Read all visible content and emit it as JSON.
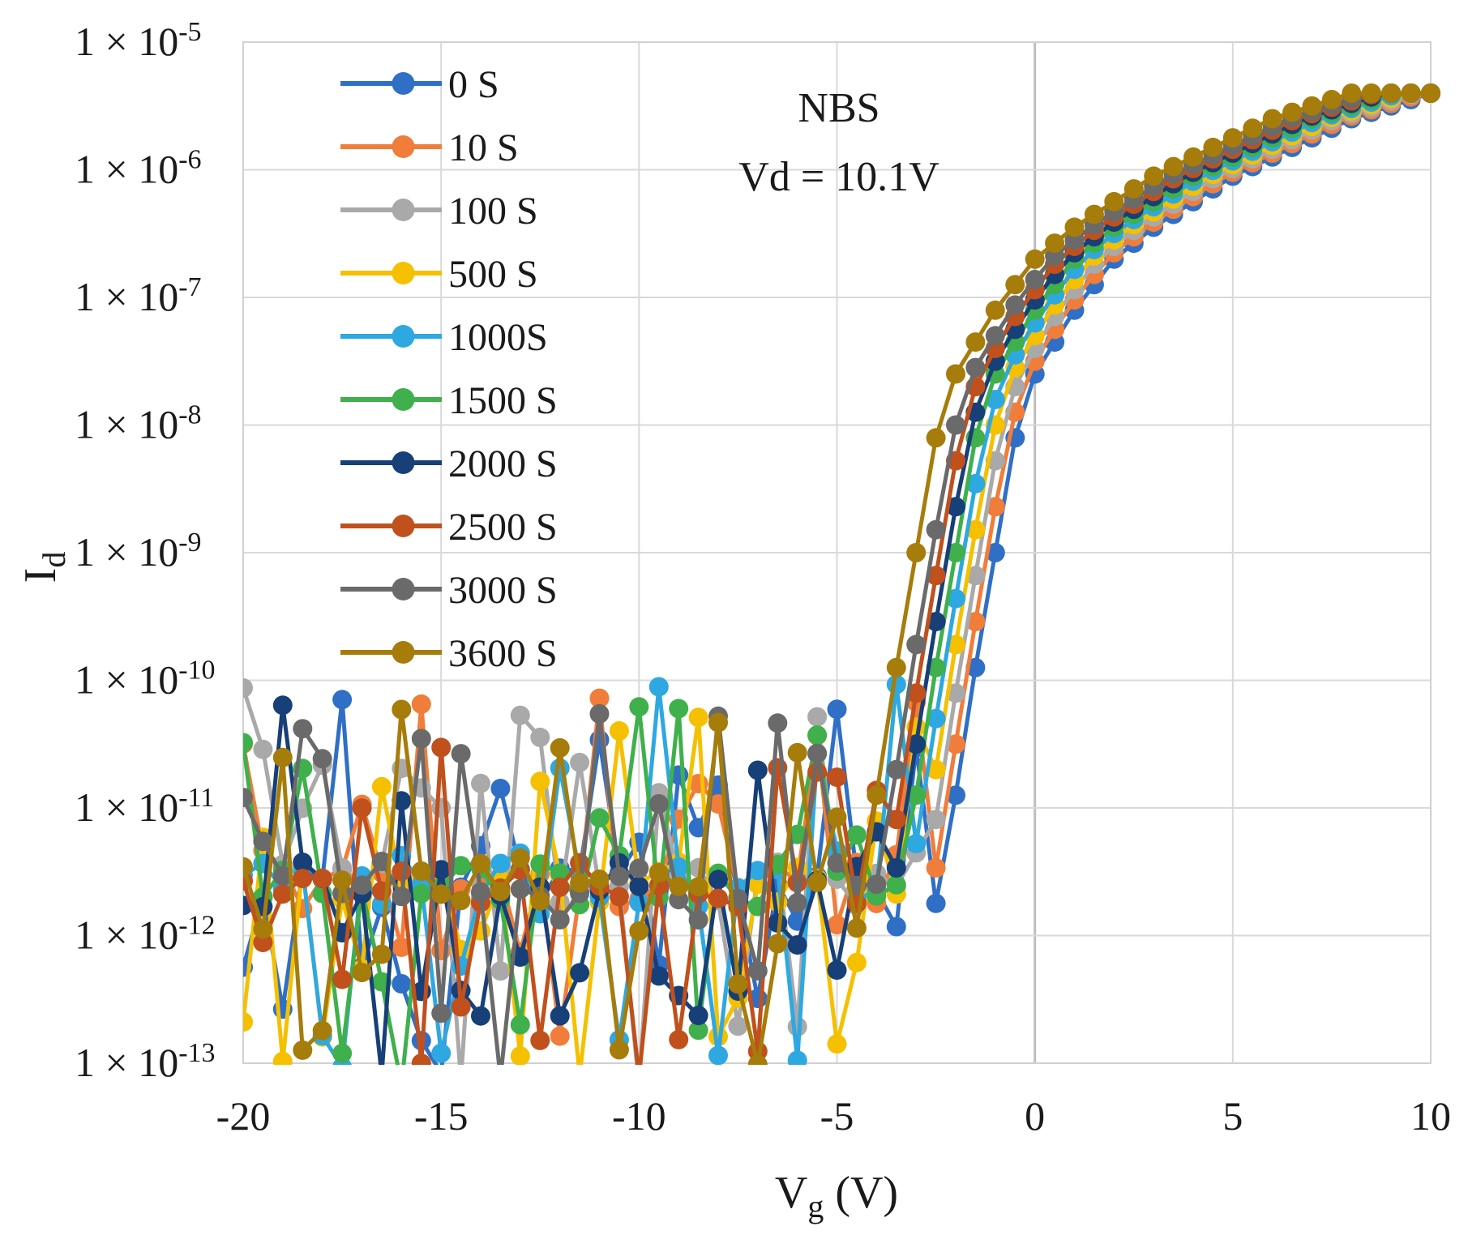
{
  "chart_data": {
    "type": "line",
    "title": "",
    "annotations": [
      "NBS",
      "Vd = 10.1V"
    ],
    "xlabel": "V",
    "xlabel_sub": "g",
    "xlabel_unit": "(V)",
    "ylabel": "I",
    "ylabel_sub": "d",
    "y_scale": "log",
    "xlim": [
      -20,
      10
    ],
    "ylim_exp": [
      -13,
      -5
    ],
    "x_ticks": [
      -20,
      -15,
      -10,
      -5,
      0,
      5,
      10
    ],
    "x_tick_labels": [
      "-20",
      "-15",
      "-10",
      "-5",
      "0",
      "5",
      "10"
    ],
    "y_ticks_exp": [
      -5,
      -6,
      -7,
      -8,
      -9,
      -10,
      -11,
      -12,
      -13
    ],
    "y_tick_mantissa": "1 × 10",
    "y_tick_labels": [
      "-5",
      "-6",
      "-7",
      "-8",
      "-9",
      "-10",
      "-11",
      "-12",
      "-13"
    ],
    "grid": true,
    "legend_position": "top-left",
    "series": [
      {
        "name": "0 S",
        "color": "#2f6fc6",
        "shift": 0.0,
        "seed": 11
      },
      {
        "name": "10 S",
        "color": "#f07d3a",
        "shift": -0.2,
        "seed": 23
      },
      {
        "name": "100 S",
        "color": "#a9a9a9",
        "shift": -0.4,
        "seed": 37
      },
      {
        "name": "500 S",
        "color": "#f5c000",
        "shift": -0.6,
        "seed": 41
      },
      {
        "name": "1000S",
        "color": "#2ea8e0",
        "shift": -0.8,
        "seed": 53
      },
      {
        "name": "1500 S",
        "color": "#3fb04b",
        "shift": -1.0,
        "seed": 67
      },
      {
        "name": "2000 S",
        "color": "#173f78",
        "shift": -1.2,
        "seed": 71
      },
      {
        "name": "2500 S",
        "color": "#c0501c",
        "shift": -1.4,
        "seed": 83
      },
      {
        "name": "3000 S",
        "color": "#6a6a6a",
        "shift": -1.6,
        "seed": 97
      },
      {
        "name": "3600 S",
        "color": "#a67c0a",
        "shift": -2.0,
        "seed": 101
      }
    ],
    "curve_model": {
      "on_points_vg": [
        -2,
        -1.5,
        -1,
        -0.5,
        0,
        1,
        2,
        3,
        4,
        5,
        6,
        7,
        8,
        9,
        10
      ],
      "on_points_log_id": [
        -10.9,
        -9.9,
        -9.0,
        -8.1,
        -7.6,
        -7.1,
        -6.7,
        -6.45,
        -6.25,
        -6.05,
        -5.9,
        -5.75,
        -5.6,
        -5.5,
        -5.4
      ],
      "off_level_log_id": -11.6,
      "off_noise_range_log_id": [
        -13.2,
        -10.0
      ],
      "vg_step": 0.5
    }
  }
}
